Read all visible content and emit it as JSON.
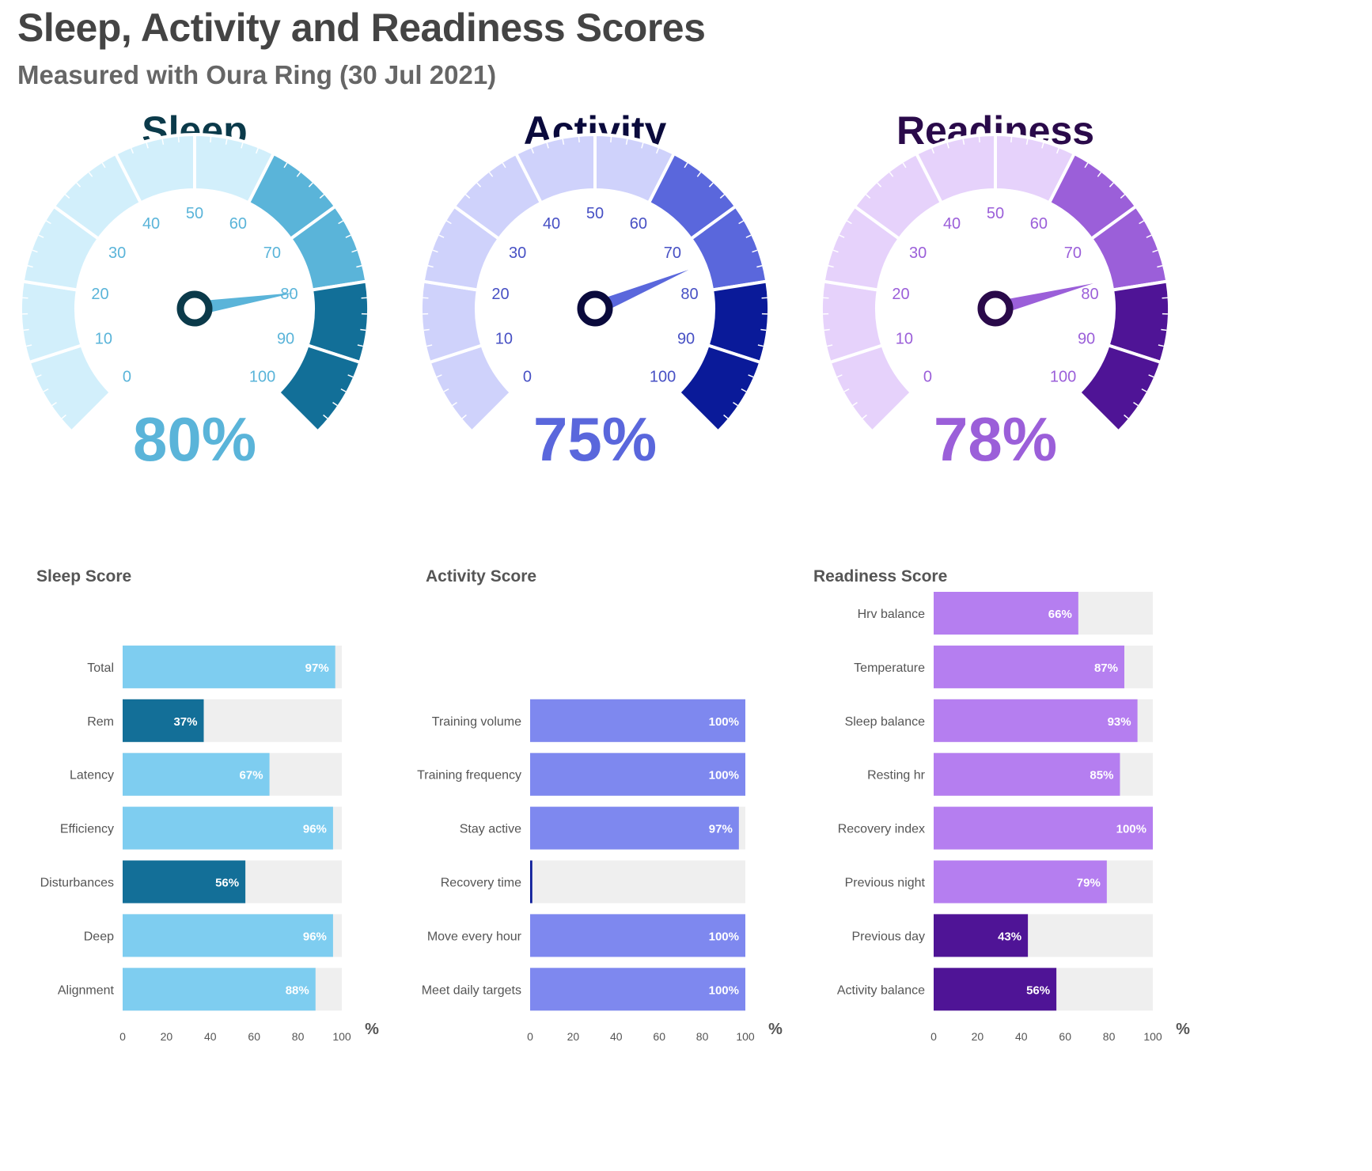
{
  "page": {
    "title": "Sleep, Activity and Readiness Scores",
    "subtitle": "Measured with Oura Ring (30 Jul 2021)"
  },
  "gauges": [
    {
      "name": "Sleep",
      "value": 80,
      "value_label": "80%",
      "ticks": [
        "0",
        "10",
        "20",
        "30",
        "40",
        "50",
        "60",
        "70",
        "80",
        "90",
        "100"
      ],
      "colors": {
        "title": "#0b3a4a",
        "value": "#5ab4d9",
        "band_light": "#d2effb",
        "band_mid": "#5ab4d9",
        "band_dark": "#126f98",
        "tick_label": "#5ab4d9",
        "needle": "#5ab4d9",
        "hub": "#0b3a4a"
      }
    },
    {
      "name": "Activity",
      "value": 75,
      "value_label": "75%",
      "ticks": [
        "0",
        "10",
        "20",
        "30",
        "40",
        "50",
        "60",
        "70",
        "80",
        "90",
        "100"
      ],
      "colors": {
        "title": "#0a0a3c",
        "value": "#5a67dc",
        "band_light": "#cfd2fb",
        "band_mid": "#5a67dc",
        "band_dark": "#0a1a99",
        "tick_label": "#4750c4",
        "needle": "#5a67dc",
        "hub": "#0a0a3c"
      }
    },
    {
      "name": "Readiness",
      "value": 78,
      "value_label": "78%",
      "ticks": [
        "0",
        "10",
        "20",
        "30",
        "40",
        "50",
        "60",
        "70",
        "80",
        "90",
        "100"
      ],
      "colors": {
        "title": "#2a0a4a",
        "value": "#9b5fd9",
        "band_light": "#e6d2fb",
        "band_mid": "#9b5fd9",
        "band_dark": "#4f1496",
        "tick_label": "#9b5fd9",
        "needle": "#9b5fd9",
        "hub": "#2a0a4a"
      }
    }
  ],
  "chart_data": [
    {
      "type": "bar",
      "orientation": "horizontal",
      "title": "Sleep Score",
      "unit_label": "%",
      "xlim": [
        0,
        100
      ],
      "xticks": [
        "0",
        "20",
        "40",
        "60",
        "80",
        "100"
      ],
      "rows": 8,
      "categories": [
        "Total",
        "Rem",
        "Latency",
        "Efficiency",
        "Disturbances",
        "Deep",
        "Alignment"
      ],
      "values": [
        97,
        37,
        67,
        96,
        56,
        96,
        88
      ],
      "labels": [
        "97%",
        "37%",
        "67%",
        "96%",
        "56%",
        "96%",
        "88%"
      ],
      "highlight": [
        false,
        true,
        false,
        false,
        true,
        false,
        false
      ],
      "colors": {
        "bar": "#7ecdf0",
        "highlight": "#136f98",
        "track": "#efefef",
        "label_text": "#ffffff",
        "category_text": "#555555",
        "title_text": "#555555"
      }
    },
    {
      "type": "bar",
      "orientation": "horizontal",
      "title": "Activity Score",
      "unit_label": "%",
      "xlim": [
        0,
        100
      ],
      "xticks": [
        "0",
        "20",
        "40",
        "60",
        "80",
        "100"
      ],
      "rows": 8,
      "categories": [
        "Training volume",
        "Training frequency",
        "Stay active",
        "Recovery time",
        "Move every hour",
        "Meet daily targets"
      ],
      "values": [
        100,
        100,
        97,
        1,
        100,
        100
      ],
      "labels": [
        "100%",
        "100%",
        "97%",
        "",
        "100%",
        "100%"
      ],
      "highlight": [
        false,
        false,
        false,
        true,
        false,
        false
      ],
      "colors": {
        "bar": "#7e88ef",
        "highlight": "#0a1a99",
        "track": "#efefef",
        "label_text": "#ffffff",
        "category_text": "#555555",
        "title_text": "#555555"
      }
    },
    {
      "type": "bar",
      "orientation": "horizontal",
      "title": "Readiness Score",
      "unit_label": "%",
      "xlim": [
        0,
        100
      ],
      "xticks": [
        "0",
        "20",
        "40",
        "60",
        "80",
        "100"
      ],
      "rows": 8,
      "categories": [
        "Hrv balance",
        "Temperature",
        "Sleep balance",
        "Resting hr",
        "Recovery index",
        "Previous night",
        "Previous day",
        "Activity balance"
      ],
      "values": [
        66,
        87,
        93,
        85,
        100,
        79,
        43,
        56
      ],
      "labels": [
        "66%",
        "87%",
        "93%",
        "85%",
        "100%",
        "79%",
        "43%",
        "56%"
      ],
      "highlight": [
        false,
        false,
        false,
        false,
        false,
        false,
        true,
        true
      ],
      "colors": {
        "bar": "#b57ef0",
        "highlight": "#4f1496",
        "track": "#efefef",
        "label_text": "#ffffff",
        "category_text": "#555555",
        "title_text": "#555555"
      }
    }
  ]
}
